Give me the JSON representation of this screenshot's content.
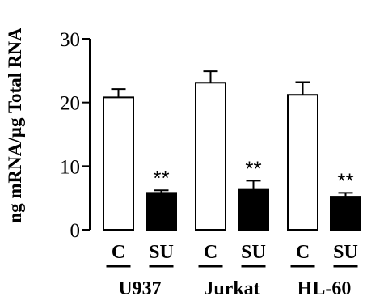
{
  "chart_data": {
    "type": "bar",
    "title": "",
    "xlabel": "",
    "ylabel": "ng mRNA/µg Total RNA",
    "ylim": [
      0,
      30
    ],
    "yticks": [
      0,
      10,
      20,
      30
    ],
    "grid": false,
    "legend": "none",
    "groups": [
      {
        "name": "U937",
        "bars": [
          {
            "category": "C",
            "value": 20.8,
            "error": 1.3,
            "fill": "#ffffff",
            "annotation": ""
          },
          {
            "category": "SU",
            "value": 5.8,
            "error": 0.4,
            "fill": "#000000",
            "annotation": "**"
          }
        ]
      },
      {
        "name": "Jurkat",
        "bars": [
          {
            "category": "C",
            "value": 23.1,
            "error": 1.8,
            "fill": "#ffffff",
            "annotation": ""
          },
          {
            "category": "SU",
            "value": 6.4,
            "error": 1.3,
            "fill": "#000000",
            "annotation": "**"
          }
        ]
      },
      {
        "name": "HL-60",
        "bars": [
          {
            "category": "C",
            "value": 21.2,
            "error": 2.0,
            "fill": "#ffffff",
            "annotation": ""
          },
          {
            "category": "SU",
            "value": 5.2,
            "error": 0.6,
            "fill": "#000000",
            "annotation": "**"
          }
        ]
      }
    ]
  }
}
